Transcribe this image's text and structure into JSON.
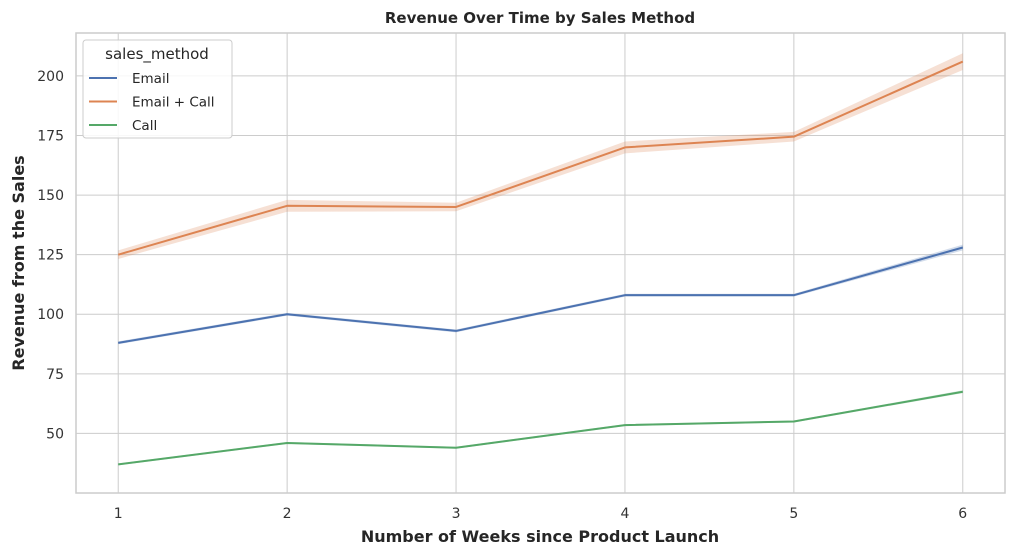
{
  "chart_data": {
    "type": "line",
    "title": "Revenue Over Time by Sales Method",
    "xlabel": "Number of Weeks since Product Launch",
    "ylabel": "Revenue from the Sales",
    "x": [
      1,
      2,
      3,
      4,
      5,
      6
    ],
    "xlim": [
      0.75,
      6.25
    ],
    "ylim": [
      25,
      218
    ],
    "xticks": [
      1,
      2,
      3,
      4,
      5,
      6
    ],
    "yticks": [
      50,
      75,
      100,
      125,
      150,
      175,
      200
    ],
    "grid": true,
    "legend": {
      "title": "sales_method",
      "placement": "top-left"
    },
    "series": [
      {
        "name": "Email",
        "color": "#4c72b0",
        "values": [
          88,
          100,
          93,
          108,
          108,
          128
        ],
        "ci": [
          0.6,
          0.6,
          0.6,
          0.6,
          0.6,
          1.2
        ]
      },
      {
        "name": "Email + Call",
        "color": "#dd8452",
        "values": [
          125,
          145.5,
          145,
          170,
          174.5,
          206
        ],
        "ci": [
          1.8,
          2.5,
          1.8,
          2.5,
          2.0,
          3.5
        ]
      },
      {
        "name": "Call",
        "color": "#55a868",
        "values": [
          37,
          46,
          44,
          53.5,
          55,
          67.5
        ],
        "ci": [
          0.4,
          0.4,
          0.4,
          0.4,
          0.4,
          0.6
        ]
      }
    ]
  }
}
